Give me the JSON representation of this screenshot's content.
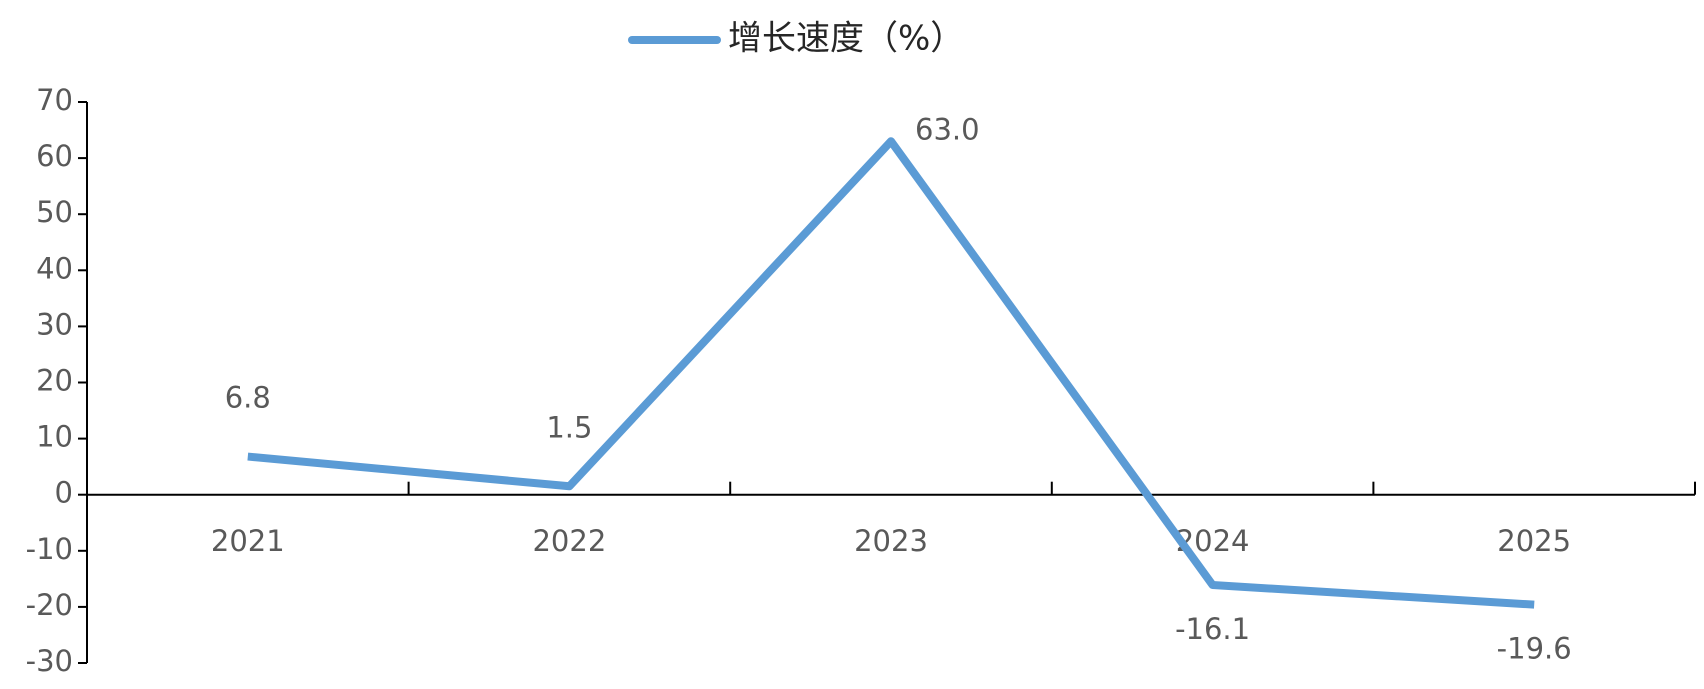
{
  "chart_data": {
    "type": "line",
    "categories": [
      "2021",
      "2022",
      "2023",
      "2024",
      "2025"
    ],
    "series": [
      {
        "name": "增长速度（%）",
        "color": "#5b9bd5",
        "values": [
          6.8,
          1.5,
          63.0,
          -16.1,
          -19.6
        ],
        "value_labels": [
          "6.8",
          "1.5",
          "63.0",
          "-16.1",
          "-19.6"
        ]
      }
    ],
    "ylim": [
      -30,
      70
    ],
    "yticks": [
      -30,
      -20,
      -10,
      0,
      10,
      20,
      30,
      40,
      50,
      60,
      70
    ],
    "legend": "top"
  }
}
